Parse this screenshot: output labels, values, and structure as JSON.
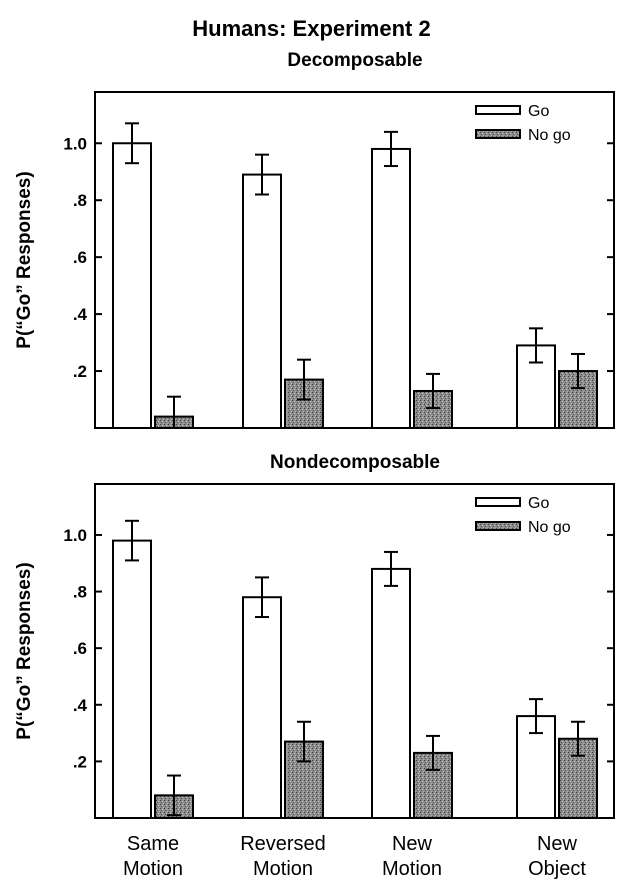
{
  "figure_title": "Humans: Experiment 2",
  "legend_go": "Go",
  "legend_nogo": "No go",
  "colors": {
    "go": "#ffffff",
    "nogo": "#8a8a8a",
    "axis": "#000000"
  },
  "chart_data": [
    {
      "type": "bar",
      "title": "Decomposable",
      "ylabel": "P(“Go” Responses)",
      "ylim": [
        0,
        1.18
      ],
      "yticks": [
        0.2,
        0.4,
        0.6,
        0.8,
        1.0
      ],
      "ytick_labels": [
        ".2",
        ".4",
        ".6",
        ".8",
        "1.0"
      ],
      "categories": [
        "Same Motion",
        "Reversed Motion",
        "New Motion",
        "New Object"
      ],
      "series": [
        {
          "name": "Go",
          "values": [
            1.0,
            0.89,
            0.98,
            0.29
          ],
          "errors": [
            0.07,
            0.07,
            0.06,
            0.06
          ]
        },
        {
          "name": "No go",
          "values": [
            0.04,
            0.17,
            0.13,
            0.2
          ],
          "errors": [
            0.07,
            0.07,
            0.06,
            0.06
          ]
        }
      ],
      "legend": "top-right"
    },
    {
      "type": "bar",
      "title": "Nondecomposable",
      "ylabel": "P(“Go” Responses)",
      "ylim": [
        0,
        1.18
      ],
      "yticks": [
        0.2,
        0.4,
        0.6,
        0.8,
        1.0
      ],
      "ytick_labels": [
        ".2",
        ".4",
        ".6",
        ".8",
        "1.0"
      ],
      "categories": [
        "Same Motion",
        "Reversed Motion",
        "New Motion",
        "New Object"
      ],
      "series": [
        {
          "name": "Go",
          "values": [
            0.98,
            0.78,
            0.88,
            0.36
          ],
          "errors": [
            0.07,
            0.07,
            0.06,
            0.06
          ]
        },
        {
          "name": "No go",
          "values": [
            0.08,
            0.27,
            0.23,
            0.28
          ],
          "errors": [
            0.07,
            0.07,
            0.06,
            0.06
          ]
        }
      ],
      "legend": "top-right"
    }
  ],
  "x_axis_labels": [
    [
      "Same",
      "Motion"
    ],
    [
      "Reversed",
      "Motion"
    ],
    [
      "New",
      "Motion"
    ],
    [
      "New",
      "Object"
    ]
  ]
}
